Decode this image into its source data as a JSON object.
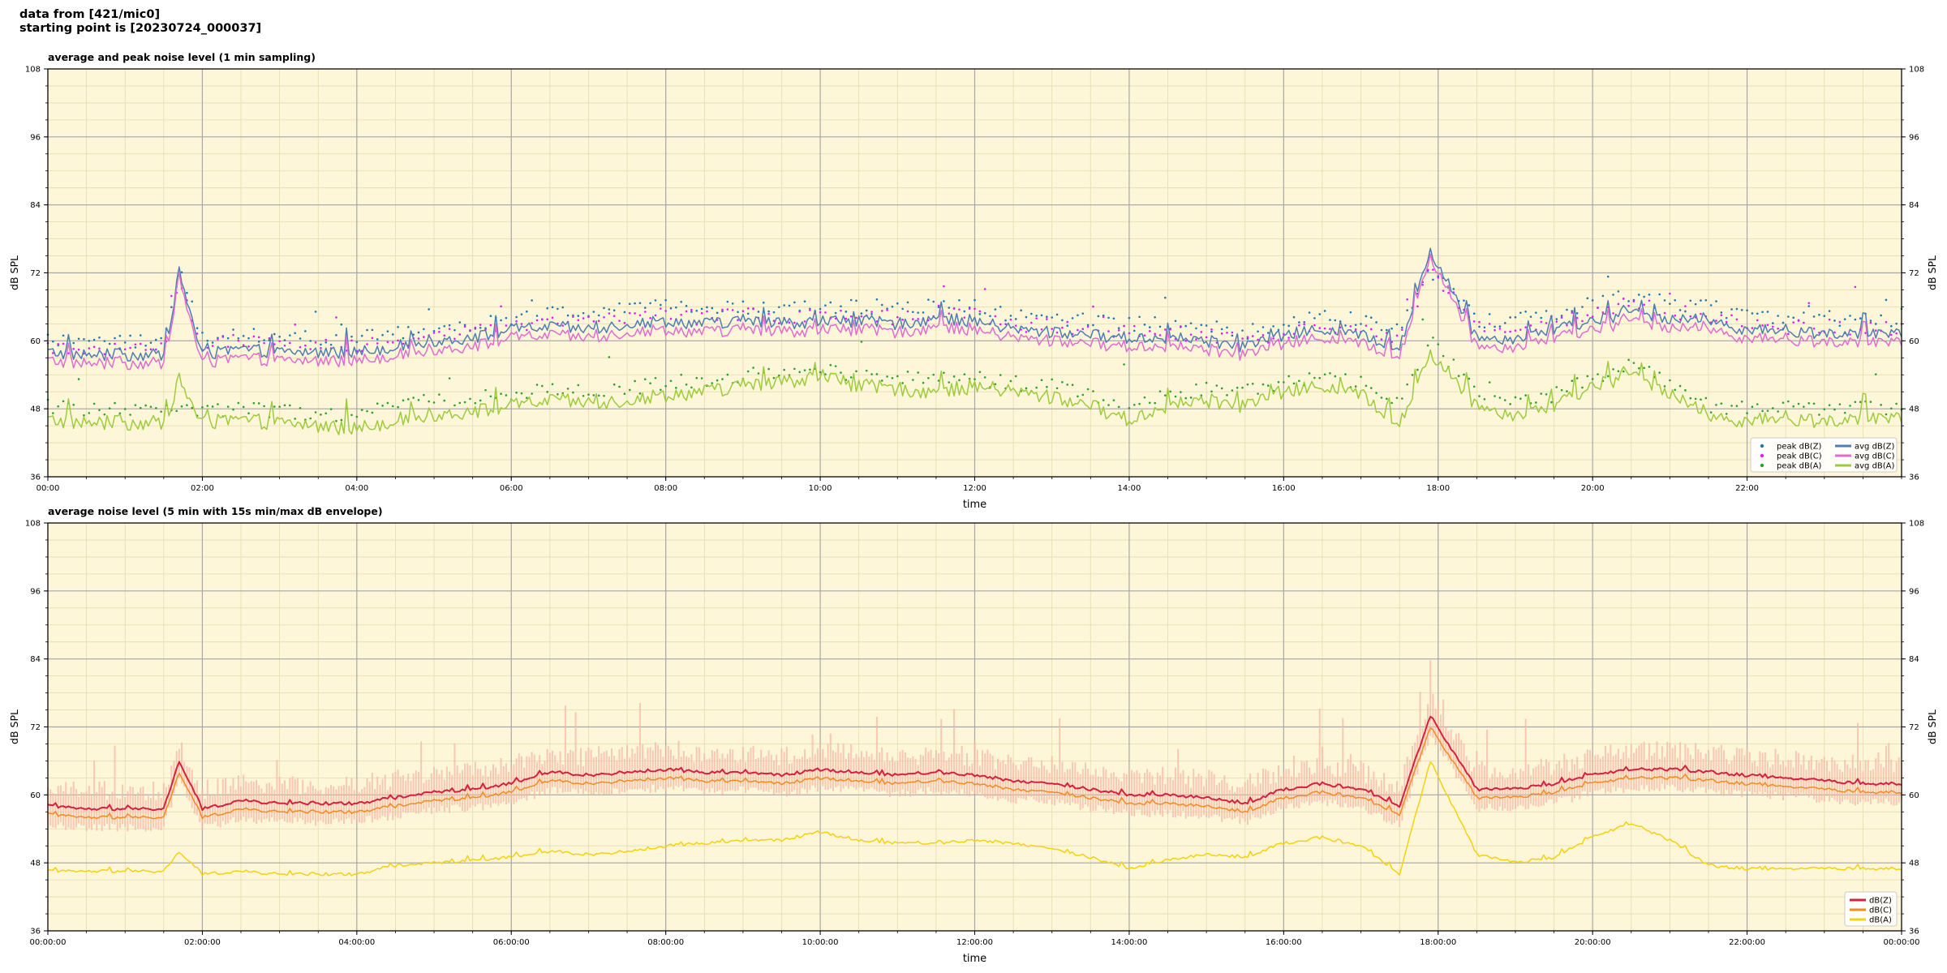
{
  "header": {
    "line1": "data from [421/mic0]",
    "line2": "starting point is [20230724_000037]"
  },
  "chart_data": [
    {
      "type": "line",
      "title": "average and peak noise level (1 min sampling)",
      "xlabel": "time",
      "ylabel": "dB SPL",
      "ylim": [
        36,
        108
      ],
      "yticks": [
        36,
        48,
        60,
        72,
        84,
        96,
        108
      ],
      "xlim_hours": [
        0,
        24
      ],
      "xticks": [
        "00:00",
        "02:00",
        "04:00",
        "06:00",
        "08:00",
        "10:00",
        "12:00",
        "14:00",
        "16:00",
        "18:00",
        "20:00",
        "22:00"
      ],
      "grid": true,
      "legend_position": "bottom-right",
      "background": "#fdf6d9",
      "x_hours": [
        0,
        0.5,
        1,
        1.5,
        1.7,
        2,
        2.5,
        3,
        3.5,
        4,
        4.5,
        5,
        5.5,
        6,
        6.5,
        7,
        7.5,
        8,
        8.5,
        9,
        9.5,
        10,
        10.5,
        11,
        11.5,
        12,
        12.5,
        13,
        13.5,
        14,
        14.5,
        15,
        15.5,
        16,
        16.5,
        17,
        17.5,
        17.9,
        18.5,
        19,
        19.5,
        20,
        20.5,
        21,
        21.5,
        22,
        22.5,
        23,
        23.5,
        24
      ],
      "series": [
        {
          "name": "peak dB(Z)",
          "style": "points",
          "color": "#1f77b4",
          "values": [
            59.5,
            59.5,
            59.5,
            59.5,
            72,
            60,
            61,
            60,
            60,
            60,
            61,
            62,
            62.5,
            63.5,
            64.5,
            64,
            65,
            65.5,
            65,
            65.5,
            65,
            65.5,
            65.5,
            65,
            66,
            65.5,
            64,
            63.5,
            63,
            62.5,
            62.5,
            62,
            61,
            62.5,
            64,
            63,
            61,
            72,
            63,
            63,
            64.5,
            66,
            67.5,
            66,
            65.5,
            64,
            63.5,
            63.5,
            63,
            63
          ]
        },
        {
          "name": "peak dB(C)",
          "style": "points",
          "color": "#e31aff",
          "values": [
            58,
            58,
            58,
            58,
            70,
            58.5,
            59.5,
            58.5,
            58.5,
            58.5,
            59.5,
            60.5,
            61,
            62,
            63,
            62.5,
            63.5,
            64,
            63.5,
            64,
            63.5,
            64,
            64,
            63.5,
            64.5,
            64,
            62.5,
            62,
            61.5,
            61,
            61,
            60.5,
            59.5,
            61,
            62.5,
            61.5,
            59.5,
            72,
            61.5,
            61.5,
            63,
            64.5,
            66,
            64.5,
            64,
            62.5,
            62,
            62,
            61.5,
            61.5
          ]
        },
        {
          "name": "peak dB(A)",
          "style": "points",
          "color": "#2ca02c",
          "values": [
            48,
            47.5,
            47.5,
            47.5,
            47,
            47,
            47.5,
            47,
            46.5,
            46.5,
            48,
            49,
            49.5,
            50,
            51,
            50.5,
            51,
            52,
            52.5,
            53.5,
            54,
            55,
            53,
            53,
            52.5,
            53,
            52,
            51.5,
            50,
            48,
            50,
            51,
            50.5,
            52,
            53,
            52,
            48,
            60,
            50,
            48.5,
            50,
            53,
            55,
            52,
            48,
            47.5,
            47.5,
            47.5,
            47.5,
            47.5
          ]
        },
        {
          "name": "avg dB(Z)",
          "style": "line",
          "color": "#4d7db2",
          "values": [
            58,
            57.5,
            57.5,
            57.5,
            72,
            57.5,
            58.5,
            58,
            58,
            58,
            59,
            60,
            60.5,
            62,
            62.5,
            62,
            63,
            63.5,
            63,
            63.5,
            63,
            63.5,
            63.5,
            63,
            64,
            63.5,
            62,
            61.5,
            61,
            60.5,
            60.5,
            60,
            59,
            61,
            62,
            61,
            58.5,
            76,
            60.5,
            60.5,
            62,
            63.5,
            65,
            64,
            63.5,
            62,
            61.5,
            61.5,
            61,
            61
          ]
        },
        {
          "name": "avg dB(C)",
          "style": "line",
          "color": "#e06cd0",
          "values": [
            56.5,
            56,
            56,
            56,
            71,
            56,
            57,
            56.5,
            56.5,
            56.5,
            57.5,
            58.5,
            59,
            60.5,
            61,
            60.5,
            61.5,
            62,
            61.5,
            62,
            61.5,
            62,
            62,
            61.5,
            62.5,
            62,
            60.5,
            60,
            59.5,
            59,
            59,
            58.5,
            57.5,
            59.5,
            60.5,
            59.5,
            57,
            75,
            59,
            59,
            60.5,
            62,
            63.5,
            62.5,
            62,
            60.5,
            60,
            60,
            59.5,
            59.5
          ]
        },
        {
          "name": "avg dB(A)",
          "style": "line",
          "color": "#9ccc3c",
          "values": [
            46,
            45.5,
            45.5,
            45.5,
            53,
            45.5,
            46,
            45.5,
            45,
            44.5,
            46,
            47,
            47.5,
            48.5,
            49.5,
            49,
            49.5,
            50.5,
            51,
            52,
            52.5,
            54,
            52,
            51.5,
            51,
            52,
            51,
            50,
            48.5,
            46,
            48.5,
            49.5,
            48.5,
            51,
            52,
            50.5,
            45,
            58,
            48.5,
            47,
            48.5,
            52,
            54,
            51,
            46.5,
            46,
            46,
            46,
            46,
            46
          ]
        }
      ]
    },
    {
      "type": "line",
      "title": "average noise level (5 min with 15s min/max dB envelope)",
      "xlabel": "time",
      "ylabel": "dB SPL",
      "ylim": [
        36,
        108
      ],
      "yticks": [
        36,
        48,
        60,
        72,
        84,
        96,
        108
      ],
      "xlim_hours": [
        0,
        24
      ],
      "xticks": [
        "00:00:00",
        "02:00:00",
        "04:00:00",
        "06:00:00",
        "08:00:00",
        "10:00:00",
        "12:00:00",
        "14:00:00",
        "16:00:00",
        "18:00:00",
        "20:00:00",
        "22:00:00",
        "00:00:00"
      ],
      "grid": true,
      "legend_position": "bottom-right",
      "background": "#fdf6d9",
      "envelope_color": "#f4b8a6",
      "x_hours": [
        0,
        0.5,
        1,
        1.5,
        1.7,
        2,
        2.5,
        3,
        3.5,
        4,
        4.5,
        5,
        5.5,
        6,
        6.5,
        7,
        7.5,
        8,
        8.5,
        9,
        9.5,
        10,
        10.5,
        11,
        11.5,
        12,
        12.5,
        13,
        13.5,
        14,
        14.5,
        15,
        15.5,
        16,
        16.5,
        17,
        17.5,
        17.9,
        18.5,
        19,
        19.5,
        20,
        20.5,
        21,
        21.5,
        22,
        22.5,
        23,
        23.5,
        24
      ],
      "series": [
        {
          "name": "dB(Z)",
          "color": "#d6203f",
          "values": [
            58,
            57.5,
            57.5,
            57.5,
            66,
            57.5,
            59,
            58.5,
            58.5,
            58.5,
            59.5,
            60.5,
            61,
            62,
            64,
            63.5,
            64,
            64.5,
            64,
            64,
            63.5,
            64.5,
            64,
            63.5,
            64,
            63.5,
            62.5,
            62,
            61,
            60,
            60,
            59.5,
            58.5,
            61,
            62,
            61,
            58,
            74,
            61,
            61,
            62,
            63.5,
            64.5,
            64.5,
            64,
            63.5,
            63,
            62.5,
            62,
            62
          ]
        },
        {
          "name": "dB(C)",
          "color": "#f58a1f",
          "values": [
            56.5,
            56,
            56,
            56,
            64,
            56,
            57.5,
            57,
            57,
            57,
            58,
            59,
            59.5,
            60.5,
            62.5,
            62,
            62.5,
            63,
            62.5,
            62.5,
            62,
            63,
            62.5,
            62,
            62.5,
            62,
            61,
            60.5,
            59.5,
            58.5,
            58.5,
            58,
            57,
            59.5,
            60.5,
            59.5,
            56.5,
            72,
            59.5,
            59.5,
            60.5,
            62,
            63,
            63,
            62.5,
            62,
            61.5,
            61,
            60.5,
            60.5
          ]
        },
        {
          "name": "dB(A)",
          "color": "#f5d20a",
          "values": [
            46.5,
            46.5,
            46.5,
            46.5,
            50,
            46,
            46.5,
            46,
            46,
            46,
            47.5,
            48,
            48.5,
            49,
            50,
            49.5,
            50,
            51,
            51.5,
            52,
            52,
            53.5,
            52,
            51.5,
            51.5,
            52,
            51.5,
            50.5,
            49,
            47,
            48.5,
            49.5,
            49,
            51.5,
            52.5,
            51,
            46,
            66,
            49.5,
            48,
            49,
            52.5,
            55,
            52,
            47.5,
            47,
            47,
            47,
            47,
            47
          ]
        }
      ]
    }
  ]
}
